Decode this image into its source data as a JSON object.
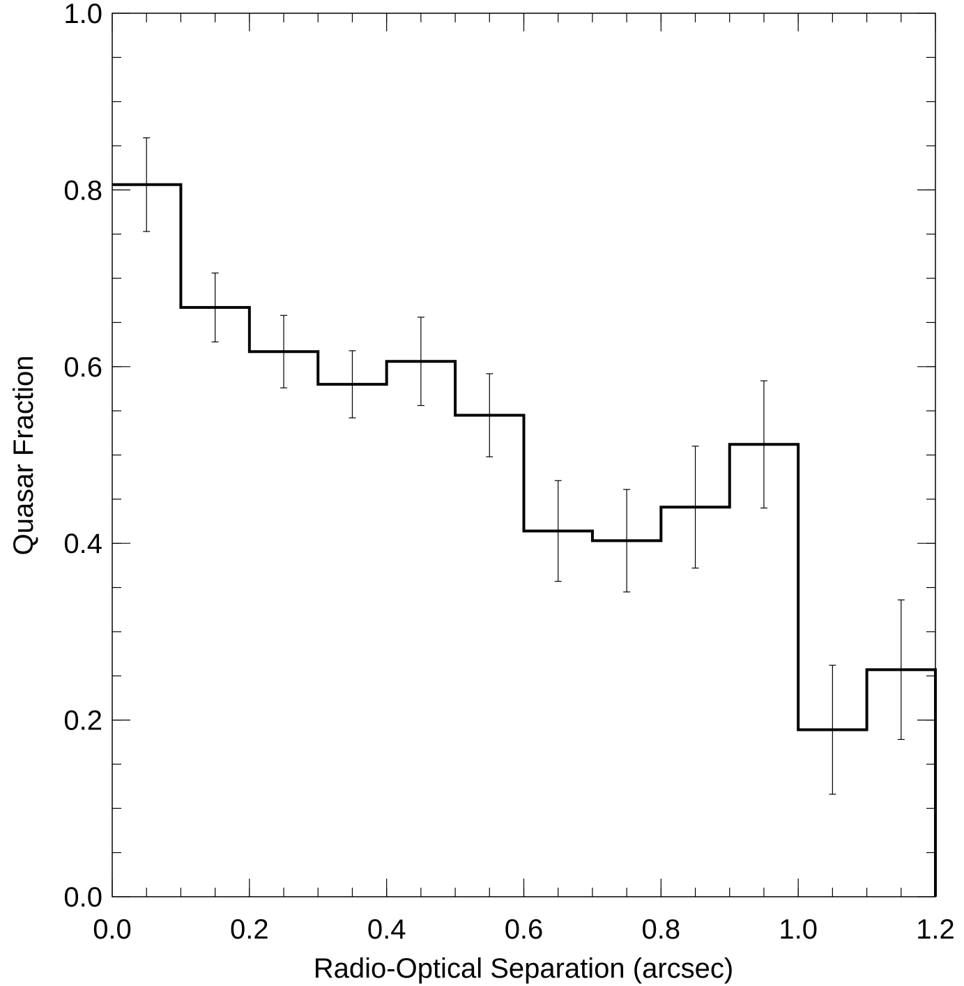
{
  "chart_data": {
    "type": "step-histogram",
    "title": "",
    "xlabel": "Radio-Optical Separation (arcsec)",
    "ylabel": "Quasar Fraction",
    "xlim": [
      0.0,
      1.2
    ],
    "ylim": [
      0.0,
      1.0
    ],
    "x_ticks": [
      "0.0",
      "0.2",
      "0.4",
      "0.6",
      "0.8",
      "1.0",
      "1.2"
    ],
    "y_ticks": [
      "0.0",
      "0.2",
      "0.4",
      "0.6",
      "0.8",
      "1.0"
    ],
    "x_tick_values": [
      0.0,
      0.2,
      0.4,
      0.6,
      0.8,
      1.0,
      1.2
    ],
    "y_tick_values": [
      0.0,
      0.2,
      0.4,
      0.6,
      0.8,
      1.0
    ],
    "x_minor_step": 0.05,
    "y_minor_step": 0.05,
    "grid": false,
    "bin_edges": [
      0.0,
      0.1,
      0.2,
      0.3,
      0.4,
      0.5,
      0.6,
      0.7,
      0.8,
      0.9,
      1.0,
      1.1,
      1.2
    ],
    "bin_centers": [
      0.05,
      0.15,
      0.25,
      0.35,
      0.45,
      0.55,
      0.65,
      0.75,
      0.85,
      0.95,
      1.05,
      1.15
    ],
    "values": [
      0.806,
      0.667,
      0.617,
      0.58,
      0.606,
      0.545,
      0.414,
      0.403,
      0.441,
      0.512,
      0.189,
      0.257
    ],
    "errors": [
      0.053,
      0.039,
      0.041,
      0.038,
      0.05,
      0.047,
      0.057,
      0.058,
      0.069,
      0.072,
      0.073,
      0.079
    ],
    "line_color": "#000000",
    "background": "#ffffff"
  }
}
